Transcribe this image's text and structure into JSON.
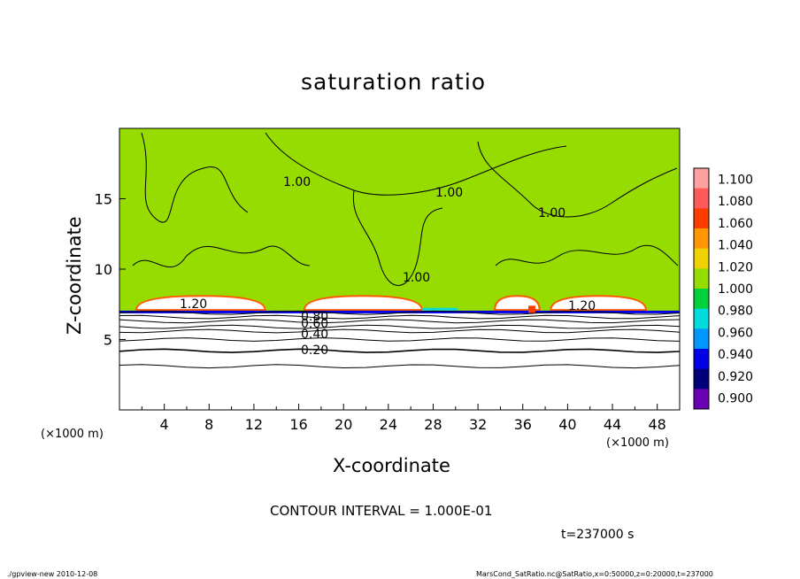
{
  "chart_data": {
    "type": "heatmap",
    "title": "saturation ratio",
    "xlabel": "X-coordinate",
    "ylabel": "Z-coordinate",
    "x_unit": "(×1000 m)",
    "z_unit": "(×1000 m)",
    "xlim": [
      0,
      50
    ],
    "ylim": [
      0,
      20
    ],
    "x_ticks": [
      "4",
      "8",
      "12",
      "16",
      "20",
      "24",
      "28",
      "32",
      "36",
      "40",
      "44",
      "48"
    ],
    "y_ticks": [
      "5",
      "10",
      "15"
    ],
    "colorbar": {
      "levels": [
        "1.100",
        "1.080",
        "1.060",
        "1.040",
        "1.020",
        "1.000",
        "0.980",
        "0.960",
        "0.940",
        "0.920",
        "0.900"
      ],
      "colors": [
        "#ffa0a0",
        "#ff5a5a",
        "#ff3c00",
        "#ff9600",
        "#f0d200",
        "#96dc00",
        "#00d23c",
        "#00dcdc",
        "#0096ff",
        "#0000e6",
        "#00007a",
        "#6a00b4"
      ]
    },
    "contour_labels": [
      "1.00",
      "1.00",
      "1.00",
      "1.00",
      "1.20",
      "1.20",
      "0.80",
      "0.60",
      "0.40",
      "0.20"
    ],
    "contour_interval_text": "CONTOUR INTERVAL = 1.000E-01",
    "time_text": "t=237000 s"
  },
  "footer": {
    "left": "./gpview-new   2010-12-08",
    "right": "MarsCond_SatRatio.nc@SatRatio,x=0:50000,z=0:20000,t=237000"
  }
}
